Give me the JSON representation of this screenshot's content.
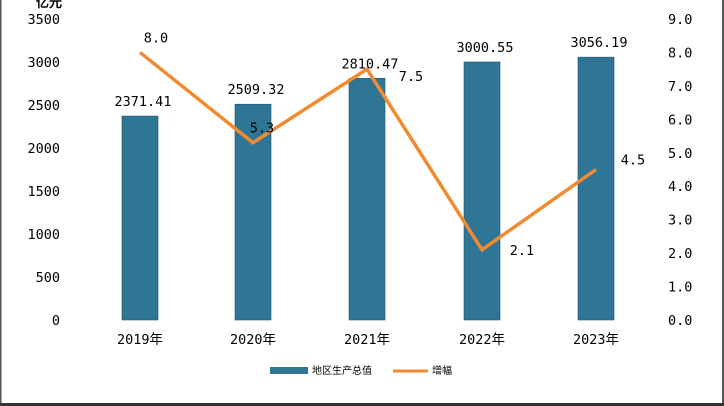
{
  "chart_data": {
    "type": "bar",
    "categories": [
      "2019年",
      "2020年",
      "2021年",
      "2022年",
      "2023年"
    ],
    "series": [
      {
        "name": "地区生产总值",
        "type": "bar",
        "axis": "left",
        "values": [
          2371.41,
          2509.32,
          2810.47,
          3000.55,
          3056.19
        ],
        "labels": [
          "2371.41",
          "2509.32",
          "2810.47",
          "3000.55",
          "3056.19"
        ],
        "color": "#2e7596"
      },
      {
        "name": "增幅",
        "type": "line",
        "axis": "right",
        "values": [
          8.0,
          5.3,
          7.5,
          2.1,
          4.5
        ],
        "labels": [
          "8.0",
          "5.3",
          "7.5",
          "2.1",
          "4.5"
        ],
        "color": "#f28a30"
      }
    ],
    "ylabel": "亿元",
    "ylim": [
      0,
      3500
    ],
    "yticks": [
      "0",
      "500",
      "1000",
      "1500",
      "2000",
      "2500",
      "3000",
      "3500"
    ],
    "y2lim": [
      0,
      9
    ],
    "y2ticks": [
      "0.0",
      "1.0",
      "2.0",
      "3.0",
      "4.0",
      "5.0",
      "6.0",
      "7.0",
      "8.0",
      "9.0"
    ],
    "grid": false,
    "legend": "bottom-center"
  }
}
